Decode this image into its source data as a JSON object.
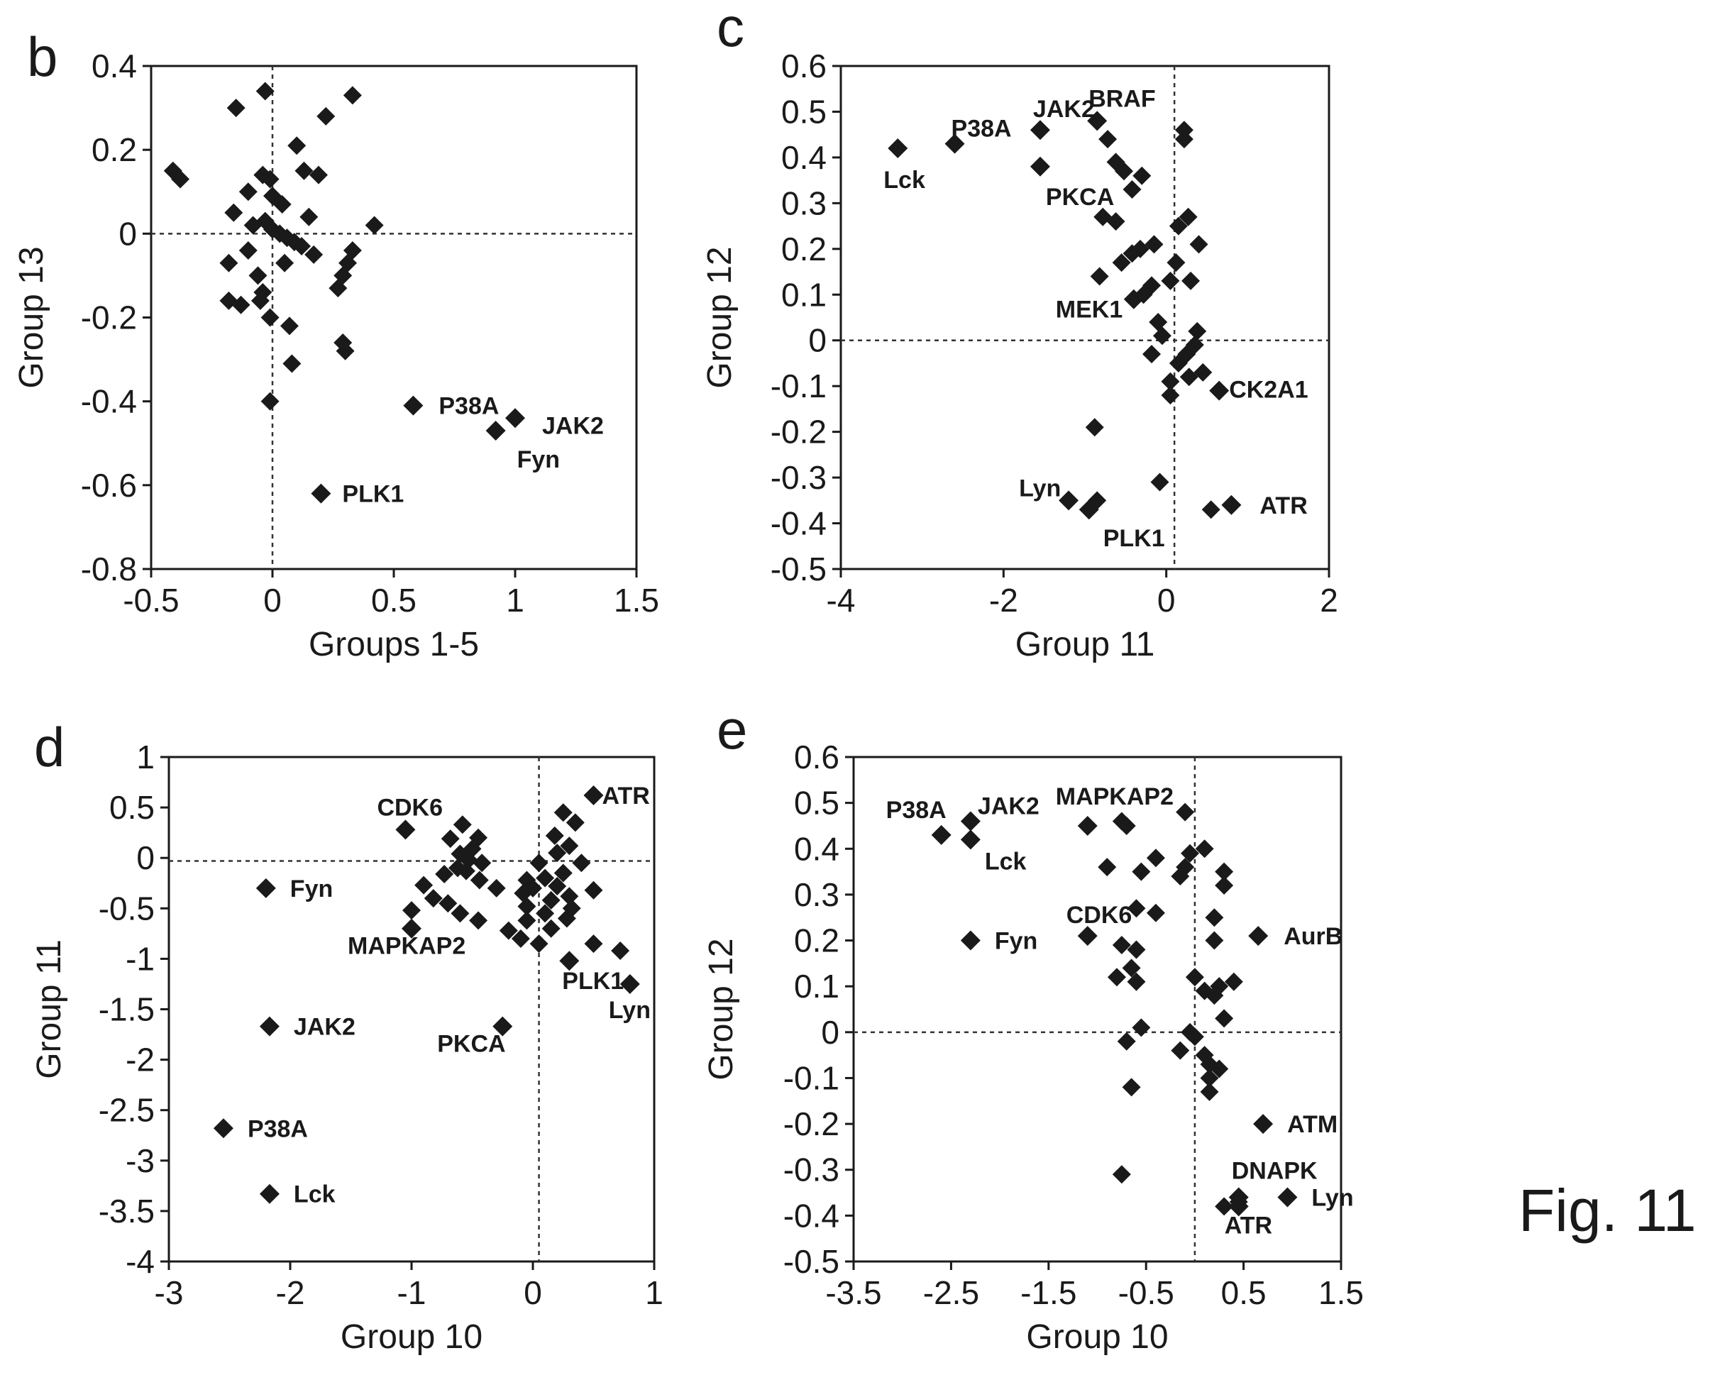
{
  "figure": {
    "caption": "Fig. 11"
  },
  "chart_data": [
    {
      "type": "scatter",
      "panel": "b",
      "xlabel": "Groups 1-5",
      "ylabel": "Group 13",
      "xlim": [
        -0.5,
        1.5
      ],
      "ylim": [
        -0.8,
        0.4
      ],
      "xticks": [
        -0.5,
        0,
        0.5,
        1,
        1.5
      ],
      "yticks": [
        -0.8,
        -0.6,
        -0.4,
        -0.2,
        0,
        0.2,
        0.4
      ],
      "xtick_labels": [
        "-0.5",
        "0",
        "0.5",
        "1",
        "1.5"
      ],
      "ytick_labels": [
        "-0.8",
        "-0.6",
        "-0.4",
        "-0.2",
        "0",
        "0.2",
        "0.4"
      ],
      "reference_lines": {
        "x": 0,
        "y": 0
      },
      "grid": false,
      "marker": "diamond",
      "points": [
        {
          "x": -0.41,
          "y": 0.15
        },
        {
          "x": -0.38,
          "y": 0.13
        },
        {
          "x": -0.15,
          "y": 0.3
        },
        {
          "x": -0.03,
          "y": 0.34
        },
        {
          "x": 0.1,
          "y": 0.21
        },
        {
          "x": 0.22,
          "y": 0.28
        },
        {
          "x": 0.33,
          "y": 0.33
        },
        {
          "x": -0.04,
          "y": 0.14
        },
        {
          "x": -0.01,
          "y": 0.13
        },
        {
          "x": 0.13,
          "y": 0.15
        },
        {
          "x": 0.19,
          "y": 0.14
        },
        {
          "x": -0.1,
          "y": 0.1
        },
        {
          "x": 0.0,
          "y": 0.09
        },
        {
          "x": -0.16,
          "y": 0.05
        },
        {
          "x": 0.04,
          "y": 0.07
        },
        {
          "x": 0.15,
          "y": 0.04
        },
        {
          "x": -0.08,
          "y": 0.02
        },
        {
          "x": -0.03,
          "y": 0.03
        },
        {
          "x": 0.0,
          "y": 0.01
        },
        {
          "x": 0.03,
          "y": 0.0
        },
        {
          "x": 0.06,
          "y": -0.01
        },
        {
          "x": 0.09,
          "y": -0.02
        },
        {
          "x": -0.1,
          "y": -0.04
        },
        {
          "x": 0.12,
          "y": -0.03
        },
        {
          "x": 0.42,
          "y": 0.02
        },
        {
          "x": -0.18,
          "y": -0.07
        },
        {
          "x": 0.05,
          "y": -0.07
        },
        {
          "x": 0.17,
          "y": -0.05
        },
        {
          "x": 0.33,
          "y": -0.04
        },
        {
          "x": 0.31,
          "y": -0.07
        },
        {
          "x": -0.06,
          "y": -0.1
        },
        {
          "x": -0.04,
          "y": -0.14
        },
        {
          "x": -0.05,
          "y": -0.16
        },
        {
          "x": -0.18,
          "y": -0.16
        },
        {
          "x": -0.13,
          "y": -0.17
        },
        {
          "x": 0.27,
          "y": -0.13
        },
        {
          "x": 0.29,
          "y": -0.1
        },
        {
          "x": -0.01,
          "y": -0.2
        },
        {
          "x": 0.07,
          "y": -0.22
        },
        {
          "x": 0.29,
          "y": -0.26
        },
        {
          "x": 0.3,
          "y": -0.28
        },
        {
          "x": 0.08,
          "y": -0.31
        },
        {
          "x": -0.01,
          "y": -0.4
        }
      ],
      "labeled_points": [
        {
          "label": "P38A",
          "x": 0.58,
          "y": -0.41
        },
        {
          "label": "JAK2",
          "x": 1.0,
          "y": -0.44
        },
        {
          "label": "Fyn",
          "x": 0.92,
          "y": -0.47
        },
        {
          "label": "PLK1",
          "x": 0.2,
          "y": -0.62
        }
      ]
    },
    {
      "type": "scatter",
      "panel": "c",
      "xlabel": "Group 11",
      "ylabel": "Group 12",
      "xlim": [
        -4,
        2
      ],
      "ylim": [
        -0.5,
        0.6
      ],
      "xticks": [
        -4,
        -2,
        0,
        2
      ],
      "yticks": [
        -0.5,
        -0.4,
        -0.3,
        -0.2,
        -0.1,
        0,
        0.1,
        0.2,
        0.3,
        0.4,
        0.5,
        0.6
      ],
      "xtick_labels": [
        "-4",
        "-2",
        "0",
        "2"
      ],
      "ytick_labels": [
        "-0.5",
        "-0.4",
        "-0.3",
        "-0.2",
        "-0.1",
        "0",
        "0.1",
        "0.2",
        "0.3",
        "0.4",
        "0.5",
        "0.6"
      ],
      "reference_lines": {
        "x": 0.1,
        "y": 0
      },
      "grid": false,
      "marker": "diamond",
      "points": [
        {
          "x": -0.72,
          "y": 0.44
        },
        {
          "x": -0.62,
          "y": 0.39
        },
        {
          "x": -0.52,
          "y": 0.37
        },
        {
          "x": -0.42,
          "y": 0.33
        },
        {
          "x": -0.3,
          "y": 0.36
        },
        {
          "x": 0.22,
          "y": 0.46
        },
        {
          "x": 0.22,
          "y": 0.44
        },
        {
          "x": -0.78,
          "y": 0.27
        },
        {
          "x": -0.62,
          "y": 0.26
        },
        {
          "x": 0.15,
          "y": 0.25
        },
        {
          "x": 0.27,
          "y": 0.27
        },
        {
          "x": -0.15,
          "y": 0.21
        },
        {
          "x": -0.32,
          "y": 0.2
        },
        {
          "x": -0.42,
          "y": 0.19
        },
        {
          "x": -0.55,
          "y": 0.17
        },
        {
          "x": 0.4,
          "y": 0.21
        },
        {
          "x": 0.12,
          "y": 0.17
        },
        {
          "x": -0.82,
          "y": 0.14
        },
        {
          "x": 0.3,
          "y": 0.13
        },
        {
          "x": -0.18,
          "y": 0.12
        },
        {
          "x": -0.28,
          "y": 0.1
        },
        {
          "x": -0.4,
          "y": 0.09
        },
        {
          "x": 0.05,
          "y": 0.13
        },
        {
          "x": -0.1,
          "y": 0.04
        },
        {
          "x": 0.38,
          "y": 0.02
        },
        {
          "x": -0.05,
          "y": 0.01
        },
        {
          "x": 0.35,
          "y": -0.01
        },
        {
          "x": 0.25,
          "y": -0.03
        },
        {
          "x": -0.18,
          "y": -0.03
        },
        {
          "x": 0.15,
          "y": -0.05
        },
        {
          "x": 0.45,
          "y": -0.07
        },
        {
          "x": 0.28,
          "y": -0.08
        },
        {
          "x": 0.05,
          "y": -0.09
        },
        {
          "x": 0.65,
          "y": -0.11
        },
        {
          "x": 0.05,
          "y": -0.12
        },
        {
          "x": -0.88,
          "y": -0.19
        },
        {
          "x": -0.08,
          "y": -0.31
        },
        {
          "x": -0.85,
          "y": -0.35
        },
        {
          "x": 0.55,
          "y": -0.37
        }
      ],
      "labeled_points": [
        {
          "label": "Lck",
          "x": -3.3,
          "y": 0.42
        },
        {
          "label": "P38A",
          "x": -2.6,
          "y": 0.43
        },
        {
          "label": "JAK2",
          "x": -1.55,
          "y": 0.46
        },
        {
          "label": "BRAF",
          "x": -0.85,
          "y": 0.48
        },
        {
          "label": "PKCA",
          "x": -1.55,
          "y": 0.38
        },
        {
          "label": "MEK1",
          "x": -0.4,
          "y": 0.09
        },
        {
          "label": "CK2A1",
          "x": 0.65,
          "y": -0.11
        },
        {
          "label": "Lyn",
          "x": -1.2,
          "y": -0.35
        },
        {
          "label": "PLK1",
          "x": -0.95,
          "y": -0.37
        },
        {
          "label": "ATR",
          "x": 0.8,
          "y": -0.36
        }
      ]
    },
    {
      "type": "scatter",
      "panel": "d",
      "xlabel": "Group 10",
      "ylabel": "Group 11",
      "xlim": [
        -3,
        1
      ],
      "ylim": [
        -4,
        1
      ],
      "xticks": [
        -3,
        -2,
        -1,
        0,
        1
      ],
      "yticks": [
        -4,
        -3.5,
        -3,
        -2.5,
        -2,
        -1.5,
        -1,
        -0.5,
        0,
        0.5,
        1
      ],
      "xtick_labels": [
        "-3",
        "-2",
        "-1",
        "0",
        "1"
      ],
      "ytick_labels": [
        "-4",
        "-3.5",
        "-3",
        "-2.5",
        "-2",
        "-1.5",
        "-1",
        "-0.5",
        "0",
        "0.5",
        "1"
      ],
      "reference_lines": {
        "x": 0.05,
        "y": -0.03
      },
      "grid": false,
      "marker": "diamond",
      "points": [
        {
          "x": -0.58,
          "y": 0.33
        },
        {
          "x": -0.68,
          "y": 0.19
        },
        {
          "x": -0.5,
          "y": 0.09
        },
        {
          "x": -0.45,
          "y": 0.2
        },
        {
          "x": -0.6,
          "y": 0.04
        },
        {
          "x": -0.53,
          "y": -0.02
        },
        {
          "x": -0.62,
          "y": -0.1
        },
        {
          "x": -0.42,
          "y": -0.05
        },
        {
          "x": -0.73,
          "y": -0.16
        },
        {
          "x": -0.55,
          "y": -0.13
        },
        {
          "x": -0.44,
          "y": -0.22
        },
        {
          "x": -0.3,
          "y": -0.3
        },
        {
          "x": -0.9,
          "y": -0.27
        },
        {
          "x": -0.7,
          "y": -0.45
        },
        {
          "x": -0.82,
          "y": -0.4
        },
        {
          "x": -1.0,
          "y": -0.52
        },
        {
          "x": -0.45,
          "y": -0.62
        },
        {
          "x": -0.6,
          "y": -0.55
        },
        {
          "x": -0.2,
          "y": -0.72
        },
        {
          "x": 0.25,
          "y": 0.45
        },
        {
          "x": 0.35,
          "y": 0.35
        },
        {
          "x": 0.18,
          "y": 0.22
        },
        {
          "x": 0.3,
          "y": 0.12
        },
        {
          "x": 0.2,
          "y": 0.05
        },
        {
          "x": 0.4,
          "y": -0.05
        },
        {
          "x": 0.05,
          "y": -0.05
        },
        {
          "x": 0.25,
          "y": -0.15
        },
        {
          "x": 0.1,
          "y": -0.2
        },
        {
          "x": -0.05,
          "y": -0.22
        },
        {
          "x": 0.0,
          "y": -0.3
        },
        {
          "x": 0.2,
          "y": -0.28
        },
        {
          "x": 0.5,
          "y": -0.32
        },
        {
          "x": -0.08,
          "y": -0.35
        },
        {
          "x": 0.3,
          "y": -0.38
        },
        {
          "x": 0.15,
          "y": -0.42
        },
        {
          "x": -0.05,
          "y": -0.48
        },
        {
          "x": 0.32,
          "y": -0.5
        },
        {
          "x": 0.1,
          "y": -0.55
        },
        {
          "x": 0.28,
          "y": -0.6
        },
        {
          "x": -0.05,
          "y": -0.62
        },
        {
          "x": 0.15,
          "y": -0.7
        },
        {
          "x": -0.1,
          "y": -0.8
        },
        {
          "x": 0.05,
          "y": -0.85
        },
        {
          "x": 0.5,
          "y": -0.85
        },
        {
          "x": 0.72,
          "y": -0.92
        }
      ],
      "labeled_points": [
        {
          "label": "CDK6",
          "x": -1.05,
          "y": 0.28
        },
        {
          "label": "ATR",
          "x": 0.5,
          "y": 0.62
        },
        {
          "label": "Fyn",
          "x": -2.2,
          "y": -0.3
        },
        {
          "label": "MAPKAP2",
          "x": -1.0,
          "y": -0.7
        },
        {
          "label": "PLK1",
          "x": 0.3,
          "y": -1.02
        },
        {
          "label": "Lyn",
          "x": 0.8,
          "y": -1.25
        },
        {
          "label": "JAK2",
          "x": -2.17,
          "y": -1.67
        },
        {
          "label": "PKCA",
          "x": -0.25,
          "y": -1.67
        },
        {
          "label": "P38A",
          "x": -2.55,
          "y": -2.68
        },
        {
          "label": "Lck",
          "x": -2.17,
          "y": -3.33
        }
      ]
    },
    {
      "type": "scatter",
      "panel": "e",
      "xlabel": "Group 10",
      "ylabel": "Group 12",
      "xlim": [
        -3.5,
        1.5
      ],
      "ylim": [
        -0.5,
        0.6
      ],
      "xticks": [
        -3.5,
        -2.5,
        -1.5,
        -0.5,
        0.5,
        1.5
      ],
      "yticks": [
        -0.5,
        -0.4,
        -0.3,
        -0.2,
        -0.1,
        0,
        0.1,
        0.2,
        0.3,
        0.4,
        0.5,
        0.6
      ],
      "xtick_labels": [
        "-3.5",
        "-2.5",
        "-1.5",
        "-0.5",
        "0.5",
        "1.5"
      ],
      "ytick_labels": [
        "-0.5",
        "-0.4",
        "-0.3",
        "-0.2",
        "-0.1",
        "0",
        "0.1",
        "0.2",
        "0.3",
        "0.4",
        "0.5",
        "0.6"
      ],
      "reference_lines": {
        "x": 0.0,
        "y": 0
      },
      "grid": false,
      "marker": "diamond",
      "points": [
        {
          "x": -0.75,
          "y": 0.46
        },
        {
          "x": -0.7,
          "y": 0.45
        },
        {
          "x": -0.1,
          "y": 0.48
        },
        {
          "x": 0.1,
          "y": 0.4
        },
        {
          "x": -0.05,
          "y": 0.39
        },
        {
          "x": -0.4,
          "y": 0.38
        },
        {
          "x": -0.9,
          "y": 0.36
        },
        {
          "x": -0.55,
          "y": 0.35
        },
        {
          "x": -0.1,
          "y": 0.36
        },
        {
          "x": 0.3,
          "y": 0.35
        },
        {
          "x": 0.3,
          "y": 0.32
        },
        {
          "x": -0.15,
          "y": 0.34
        },
        {
          "x": -0.6,
          "y": 0.27
        },
        {
          "x": -0.4,
          "y": 0.26
        },
        {
          "x": 0.2,
          "y": 0.25
        },
        {
          "x": 0.2,
          "y": 0.2
        },
        {
          "x": -0.75,
          "y": 0.19
        },
        {
          "x": -0.6,
          "y": 0.18
        },
        {
          "x": -0.65,
          "y": 0.14
        },
        {
          "x": -0.8,
          "y": 0.12
        },
        {
          "x": -0.6,
          "y": 0.11
        },
        {
          "x": 0.0,
          "y": 0.12
        },
        {
          "x": 0.25,
          "y": 0.1
        },
        {
          "x": 0.4,
          "y": 0.11
        },
        {
          "x": 0.1,
          "y": 0.09
        },
        {
          "x": 0.2,
          "y": 0.08
        },
        {
          "x": 0.3,
          "y": 0.03
        },
        {
          "x": -0.55,
          "y": 0.01
        },
        {
          "x": -0.05,
          "y": 0.0
        },
        {
          "x": 0.0,
          "y": -0.01
        },
        {
          "x": -0.7,
          "y": -0.02
        },
        {
          "x": -0.15,
          "y": -0.04
        },
        {
          "x": 0.1,
          "y": -0.05
        },
        {
          "x": 0.15,
          "y": -0.07
        },
        {
          "x": 0.25,
          "y": -0.08
        },
        {
          "x": 0.15,
          "y": -0.1
        },
        {
          "x": -0.65,
          "y": -0.12
        },
        {
          "x": 0.15,
          "y": -0.13
        },
        {
          "x": -0.75,
          "y": -0.31
        },
        {
          "x": 0.3,
          "y": -0.38
        },
        {
          "x": 0.45,
          "y": -0.37
        }
      ],
      "labeled_points": [
        {
          "label": "P38A",
          "x": -2.6,
          "y": 0.43
        },
        {
          "label": "JAK2",
          "x": -2.3,
          "y": 0.46
        },
        {
          "label": "Lck",
          "x": -2.3,
          "y": 0.42
        },
        {
          "label": "MAPKAP2",
          "x": -1.1,
          "y": 0.45
        },
        {
          "label": "Fyn",
          "x": -2.3,
          "y": 0.2
        },
        {
          "label": "CDK6",
          "x": -1.1,
          "y": 0.21
        },
        {
          "label": "AurB",
          "x": 0.65,
          "y": 0.21
        },
        {
          "label": "ATM",
          "x": 0.7,
          "y": -0.2
        },
        {
          "label": "DNAPK",
          "x": 0.45,
          "y": -0.36
        },
        {
          "label": "Lyn",
          "x": 0.95,
          "y": -0.36
        },
        {
          "label": "ATR",
          "x": 0.45,
          "y": -0.38
        }
      ]
    }
  ]
}
